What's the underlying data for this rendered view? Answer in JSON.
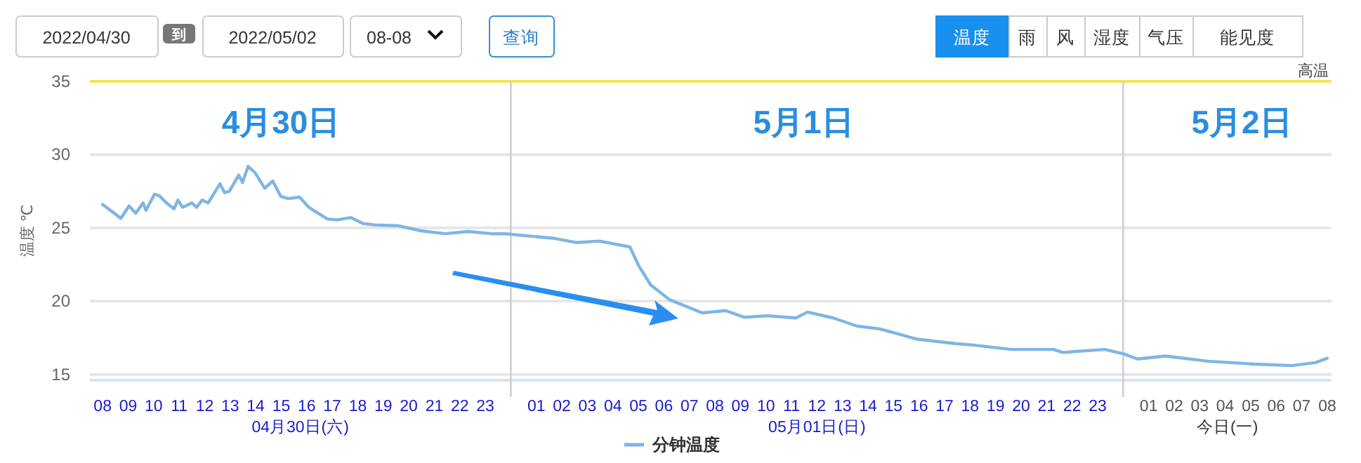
{
  "chart_data": {
    "type": "line",
    "ylabel": "温度 ℃",
    "xlim": [
      "2022-04-30T07:30",
      "2022-05-02T08:10"
    ],
    "ylim": [
      14.6,
      35
    ],
    "yticks": [
      15,
      20,
      25,
      30,
      35
    ],
    "xticks": [
      {
        "value": "2022-04-30T08:00",
        "label": "08"
      },
      {
        "value": "2022-04-30T09:00",
        "label": "09"
      },
      {
        "value": "2022-04-30T10:00",
        "label": "10"
      },
      {
        "value": "2022-04-30T11:00",
        "label": "11"
      },
      {
        "value": "2022-04-30T12:00",
        "label": "12"
      },
      {
        "value": "2022-04-30T13:00",
        "label": "13"
      },
      {
        "value": "2022-04-30T14:00",
        "label": "14"
      },
      {
        "value": "2022-04-30T15:00",
        "label": "15"
      },
      {
        "value": "2022-04-30T16:00",
        "label": "16"
      },
      {
        "value": "2022-04-30T17:00",
        "label": "17"
      },
      {
        "value": "2022-04-30T18:00",
        "label": "18"
      },
      {
        "value": "2022-04-30T19:00",
        "label": "19"
      },
      {
        "value": "2022-04-30T20:00",
        "label": "20"
      },
      {
        "value": "2022-04-30T21:00",
        "label": "21"
      },
      {
        "value": "2022-04-30T22:00",
        "label": "22"
      },
      {
        "value": "2022-04-30T23:00",
        "label": "23"
      },
      {
        "value": "2022-05-01T01:00",
        "label": "01"
      },
      {
        "value": "2022-05-01T02:00",
        "label": "02"
      },
      {
        "value": "2022-05-01T03:00",
        "label": "03"
      },
      {
        "value": "2022-05-01T04:00",
        "label": "04"
      },
      {
        "value": "2022-05-01T05:00",
        "label": "05"
      },
      {
        "value": "2022-05-01T06:00",
        "label": "06"
      },
      {
        "value": "2022-05-01T07:00",
        "label": "07"
      },
      {
        "value": "2022-05-01T08:00",
        "label": "08"
      },
      {
        "value": "2022-05-01T09:00",
        "label": "09"
      },
      {
        "value": "2022-05-01T10:00",
        "label": "10"
      },
      {
        "value": "2022-05-01T11:00",
        "label": "11"
      },
      {
        "value": "2022-05-01T12:00",
        "label": "12"
      },
      {
        "value": "2022-05-01T13:00",
        "label": "13"
      },
      {
        "value": "2022-05-01T14:00",
        "label": "14"
      },
      {
        "value": "2022-05-01T15:00",
        "label": "15"
      },
      {
        "value": "2022-05-01T16:00",
        "label": "16"
      },
      {
        "value": "2022-05-01T17:00",
        "label": "17"
      },
      {
        "value": "2022-05-01T18:00",
        "label": "18"
      },
      {
        "value": "2022-05-01T19:00",
        "label": "19"
      },
      {
        "value": "2022-05-01T20:00",
        "label": "20"
      },
      {
        "value": "2022-05-01T21:00",
        "label": "21"
      },
      {
        "value": "2022-05-01T22:00",
        "label": "22"
      },
      {
        "value": "2022-05-01T23:00",
        "label": "23"
      },
      {
        "value": "2022-05-02T01:00",
        "label": "01"
      },
      {
        "value": "2022-05-02T02:00",
        "label": "02"
      },
      {
        "value": "2022-05-02T03:00",
        "label": "03"
      },
      {
        "value": "2022-05-02T04:00",
        "label": "04"
      },
      {
        "value": "2022-05-02T05:00",
        "label": "05"
      },
      {
        "value": "2022-05-02T06:00",
        "label": "06"
      },
      {
        "value": "2022-05-02T07:00",
        "label": "07"
      },
      {
        "value": "2022-05-02T08:00",
        "label": "08"
      }
    ],
    "grid": "y",
    "legend": "bottom",
    "marker": "none",
    "line_style": "solid",
    "ref_lines": [
      {
        "axis": "y",
        "value": 35,
        "label": "高温",
        "color": "#f0e45a"
      },
      {
        "axis": "x",
        "value": "2022-05-01T00:00",
        "color": "#cccccc"
      },
      {
        "axis": "x",
        "value": "2022-05-02T00:00",
        "color": "#cccccc"
      }
    ],
    "annotations": [
      "4月30日",
      "5月1日",
      "5月2日",
      "04月30日(六)",
      "05月01日(日)",
      "今日(一)",
      "2022/04/30",
      "到",
      "2022/05/02",
      "08-08",
      "查询",
      "温度",
      "雨",
      "风",
      "湿度",
      "气压",
      "能见度"
    ],
    "series": [
      {
        "name": "分钟温度",
        "color": "#7fb5e4",
        "x": [
          "2022-04-30T08:00",
          "2022-04-30T08:43",
          "2022-04-30T09:02",
          "2022-04-30T09:18",
          "2022-04-30T09:35",
          "2022-04-30T09:42",
          "2022-04-30T10:02",
          "2022-04-30T10:13",
          "2022-04-30T10:30",
          "2022-04-30T10:48",
          "2022-04-30T10:57",
          "2022-04-30T11:08",
          "2022-04-30T11:30",
          "2022-04-30T11:41",
          "2022-04-30T11:54",
          "2022-04-30T12:08",
          "2022-04-30T12:36",
          "2022-04-30T12:47",
          "2022-04-30T12:58",
          "2022-04-30T13:20",
          "2022-04-30T13:29",
          "2022-04-30T13:42",
          "2022-04-30T13:59",
          "2022-04-30T14:21",
          "2022-04-30T14:40",
          "2022-04-30T14:59",
          "2022-04-30T15:16",
          "2022-04-30T15:43",
          "2022-04-30T16:05",
          "2022-04-30T16:49",
          "2022-04-30T17:11",
          "2022-04-30T17:44",
          "2022-04-30T18:12",
          "2022-04-30T18:40",
          "2022-04-30T19:34",
          "2022-04-30T20:29",
          "2022-04-30T21:25",
          "2022-04-30T22:20",
          "2022-04-30T23:15",
          "2022-04-30T23:48",
          "2022-05-01T00:21",
          "2022-05-01T01:38",
          "2022-05-01T02:33",
          "2022-05-01T03:28",
          "2022-05-01T04:40",
          "2022-05-01T05:01",
          "2022-05-01T05:29",
          "2022-05-01T06:13",
          "2022-05-01T07:30",
          "2022-05-01T08:25",
          "2022-05-01T09:09",
          "2022-05-01T10:04",
          "2022-05-01T11:10",
          "2022-05-01T11:38",
          "2022-05-01T12:38",
          "2022-05-01T13:34",
          "2022-05-01T14:28",
          "2022-05-01T15:56",
          "2022-05-01T17:25",
          "2022-05-01T18:08",
          "2022-05-01T19:37",
          "2022-05-01T21:16",
          "2022-05-01T21:38",
          "2022-05-01T23:17",
          "2022-05-02T00:01",
          "2022-05-02T00:34",
          "2022-05-02T01:40",
          "2022-05-02T03:19",
          "2022-05-02T05:09",
          "2022-05-02T06:37",
          "2022-05-02T07:32",
          "2022-05-02T08:00"
        ],
        "values": [
          26.6,
          25.65,
          26.5,
          26.0,
          26.7,
          26.2,
          27.3,
          27.2,
          26.7,
          26.3,
          26.9,
          26.4,
          26.7,
          26.4,
          26.9,
          26.7,
          28.0,
          27.4,
          27.5,
          28.6,
          28.1,
          29.2,
          28.75,
          27.7,
          28.2,
          27.15,
          27.0,
          27.1,
          26.4,
          25.6,
          25.55,
          25.7,
          25.3,
          25.2,
          25.15,
          24.8,
          24.6,
          24.75,
          24.6,
          24.6,
          24.5,
          24.3,
          24.0,
          24.1,
          23.7,
          22.4,
          21.1,
          20.1,
          19.2,
          19.35,
          18.9,
          19.0,
          18.85,
          19.25,
          18.85,
          18.3,
          18.1,
          17.4,
          17.1,
          17.0,
          16.7,
          16.7,
          16.5,
          16.7,
          16.4,
          16.05,
          16.25,
          15.9,
          15.7,
          15.6,
          15.8,
          16.1
        ]
      }
    ]
  }
}
